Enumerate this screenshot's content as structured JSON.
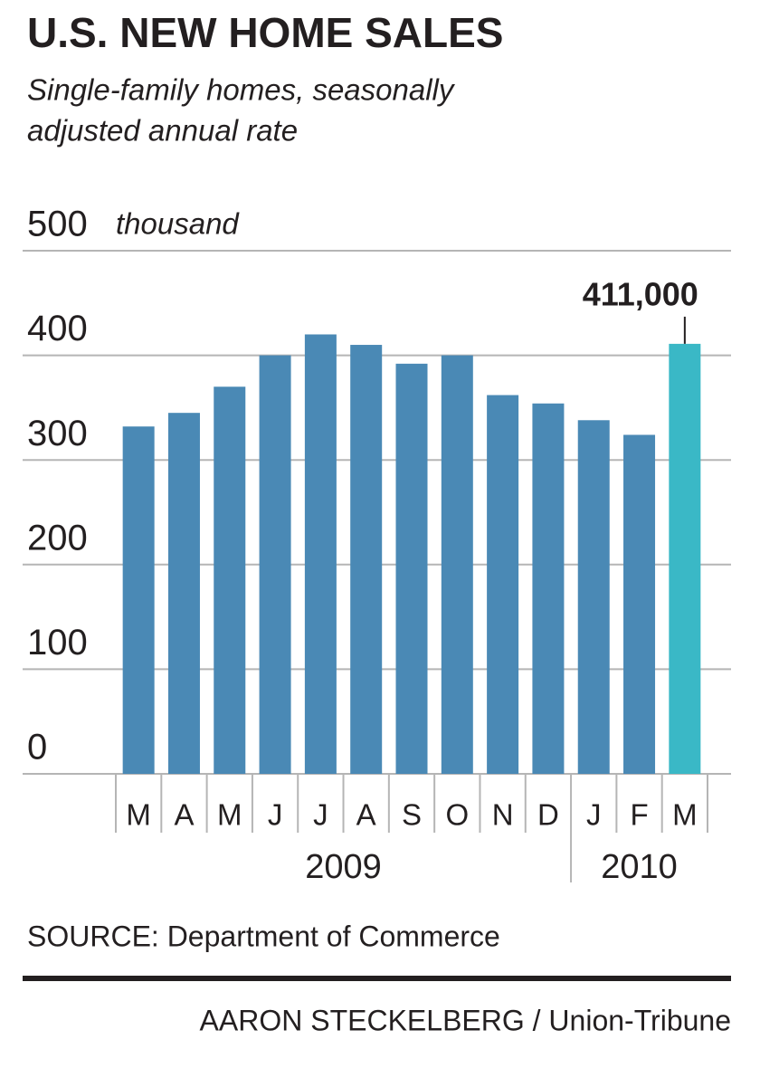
{
  "chart_data": {
    "type": "bar",
    "title": "U.S. NEW HOME SALES",
    "subtitle": [
      "Single-family homes, seasonally",
      "adjusted annual rate"
    ],
    "y_unit": "thousand",
    "categories": [
      "M",
      "A",
      "M",
      "J",
      "J",
      "A",
      "S",
      "O",
      "N",
      "D",
      "J",
      "F",
      "M"
    ],
    "groups": [
      {
        "label": "2009",
        "start": 0
      },
      {
        "label": "2010",
        "start": 10
      }
    ],
    "values": [
      332,
      345,
      370,
      400,
      420,
      410,
      392,
      400,
      362,
      354,
      338,
      324,
      411
    ],
    "color": "#4a89b5",
    "highlight": {
      "index": 12,
      "color": "#3ab8c6",
      "label": "411,000"
    },
    "ylim": [
      0,
      500
    ],
    "yticks": [
      0,
      100,
      200,
      300,
      400,
      500
    ],
    "grid": true,
    "source": "SOURCE: Department of Commerce",
    "credit": "AARON STECKELBERG / Union-Tribune"
  }
}
